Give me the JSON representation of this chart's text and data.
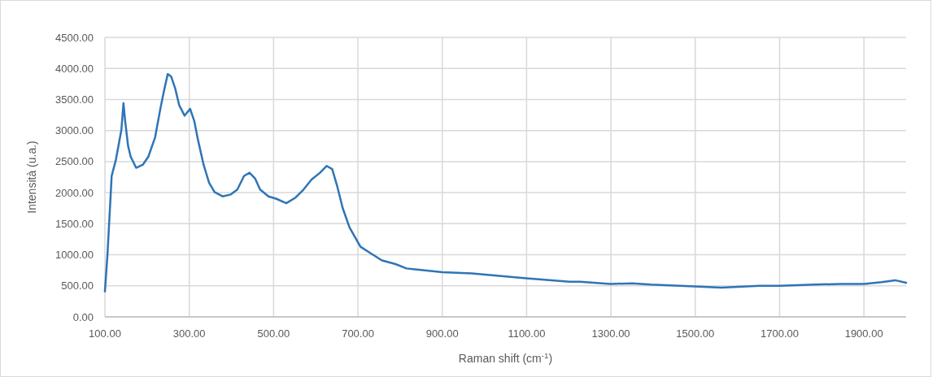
{
  "chart_data": {
    "type": "line",
    "xlabel": "Raman shift (cm$^{-1}$)",
    "ylabel": "Intensità (u.a.)",
    "xlim": [
      100,
      2000
    ],
    "xticks": [
      {
        "value": 100,
        "label": "100.00"
      },
      {
        "value": 300,
        "label": "300.00"
      },
      {
        "value": 500,
        "label": "500.00"
      },
      {
        "value": 700,
        "label": "700.00"
      },
      {
        "value": 900,
        "label": "900.00"
      },
      {
        "value": 1100,
        "label": "1100.00"
      },
      {
        "value": 1300,
        "label": "1300.00"
      },
      {
        "value": 1500,
        "label": "1500.00"
      },
      {
        "value": 1700,
        "label": "1700.00"
      },
      {
        "value": 1900,
        "label": "1900.00"
      }
    ],
    "ylim": [
      0,
      4500
    ],
    "yticks": [
      {
        "value": 0,
        "label": "0.00"
      },
      {
        "value": 500,
        "label": "500.00"
      },
      {
        "value": 1000,
        "label": "1000.00"
      },
      {
        "value": 1500,
        "label": "1500.00"
      },
      {
        "value": 2000,
        "label": "2000.00"
      },
      {
        "value": 2500,
        "label": "2500.00"
      },
      {
        "value": 3000,
        "label": "3000.00"
      },
      {
        "value": 3500,
        "label": "3500.00"
      },
      {
        "value": 4000,
        "label": "4000.00"
      },
      {
        "value": 4500,
        "label": "4500.00"
      }
    ],
    "grid": true,
    "marker": "none",
    "line_style": "solid",
    "series": [
      {
        "color": "#2e75b6",
        "x": [
          100,
          106,
          116,
          126,
          132,
          139,
          144,
          148,
          155,
          161,
          174,
          190,
          203,
          219,
          232,
          241,
          249,
          257,
          267,
          276,
          289,
          302,
          312,
          321,
          334,
          347,
          360,
          379,
          398,
          414,
          430,
          443,
          456,
          468,
          488,
          507,
          530,
          552,
          571,
          590,
          610,
          626,
          639,
          651,
          664,
          680,
          706,
          731,
          757,
          789,
          815,
          900,
          970,
          1099,
          1202,
          1227,
          1299,
          1350,
          1395,
          1498,
          1562,
          1652,
          1700,
          1781,
          1845,
          1900,
          1942,
          1974,
          2000
        ],
        "values": [
          410,
          1000,
          2270,
          2530,
          2750,
          3010,
          3440,
          3150,
          2750,
          2580,
          2400,
          2450,
          2580,
          2890,
          3370,
          3670,
          3910,
          3870,
          3670,
          3410,
          3240,
          3350,
          3150,
          2840,
          2450,
          2160,
          2010,
          1940,
          1970,
          2050,
          2270,
          2320,
          2230,
          2050,
          1940,
          1900,
          1830,
          1920,
          2050,
          2210,
          2320,
          2430,
          2380,
          2100,
          1750,
          1440,
          1130,
          1020,
          910,
          850,
          780,
          720,
          700,
          620,
          565,
          565,
          530,
          540,
          520,
          490,
          470,
          500,
          500,
          520,
          530,
          530,
          560,
          590,
          550
        ]
      }
    ]
  }
}
